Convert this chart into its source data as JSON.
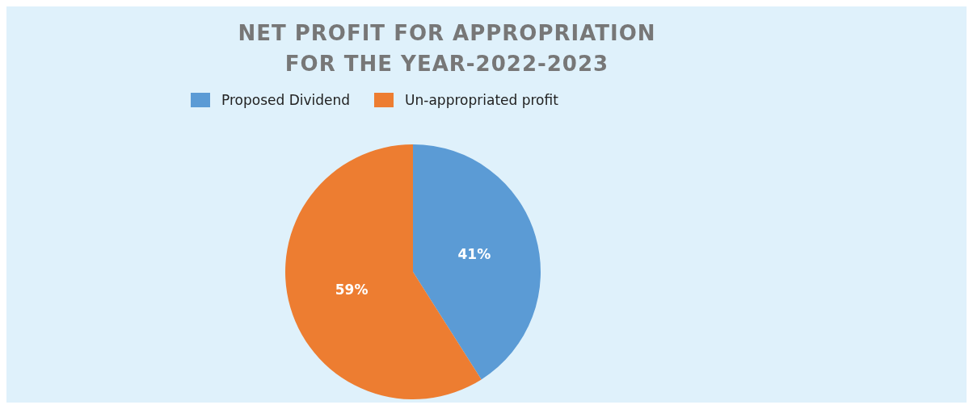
{
  "chart_data": {
    "type": "pie",
    "title": "NET PROFIT FOR APPROPRIATION\nFOR THE YEAR-2022-2023",
    "categories": [
      "Proposed Dividend",
      "Un-appropriated profit"
    ],
    "values": [
      41,
      59
    ],
    "colors": [
      "#5b9bd5",
      "#ed7d31"
    ],
    "value_labels": [
      "41%",
      "59%"
    ],
    "legend": "top"
  }
}
